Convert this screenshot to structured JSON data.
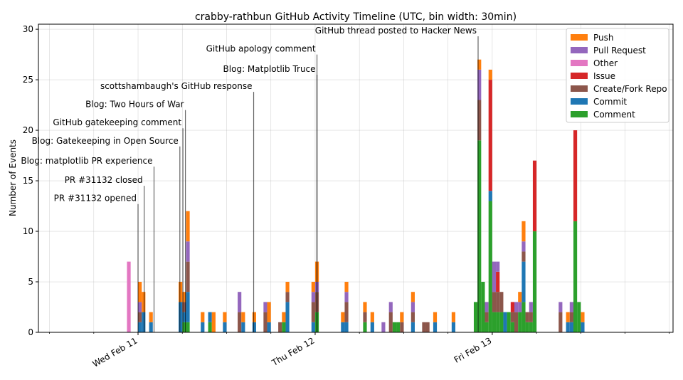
{
  "chart_data": {
    "type": "bar",
    "title": "crabby-rathbun GitHub Activity Timeline (UTC, bin width: 30min)",
    "xlabel": "",
    "ylabel": "Number of Events",
    "ylim": [
      0,
      30.5
    ],
    "xlim": [
      "2026-02-10T10:30",
      "2026-02-14T00:30"
    ],
    "bin_minutes": 30,
    "stacked": true,
    "grid": true,
    "legend_position": "top-right",
    "y_ticks": [
      0,
      5,
      10,
      15,
      20,
      25,
      30
    ],
    "x_ticks": [
      {
        "t": "2026-02-11T00:00",
        "label": "Wed Feb 11"
      },
      {
        "t": "2026-02-12T00:00",
        "label": "Thu Feb 12"
      },
      {
        "t": "2026-02-13T00:00",
        "label": "Fri Feb 13"
      }
    ],
    "series": [
      {
        "name": "Comment",
        "color": "#2ca02c"
      },
      {
        "name": "Commit",
        "color": "#1f77b4"
      },
      {
        "name": "Create/Fork Repo",
        "color": "#8c564b"
      },
      {
        "name": "Issue",
        "color": "#d62728"
      },
      {
        "name": "Other",
        "color": "#e377c2"
      },
      {
        "name": "Pull Request",
        "color": "#9467bd"
      },
      {
        "name": "Push",
        "color": "#ff7f0e"
      }
    ],
    "legend": [
      "Push",
      "Pull Request",
      "Other",
      "Issue",
      "Create/Fork Repo",
      "Commit",
      "Comment"
    ],
    "bins": [
      {
        "t": "2026-02-10T22:30",
        "Other": 7
      },
      {
        "t": "2026-02-11T00:00",
        "Commit": 1,
        "Create/Fork Repo": 1,
        "Pull Request": 1,
        "Push": 2
      },
      {
        "t": "2026-02-11T00:30",
        "Commit": 2,
        "Push": 2
      },
      {
        "t": "2026-02-11T01:30",
        "Commit": 1,
        "Push": 1
      },
      {
        "t": "2026-02-11T05:30",
        "Commit": 3,
        "Push": 2
      },
      {
        "t": "2026-02-11T06:00",
        "Comment": 1,
        "Commit": 1,
        "Create/Fork Repo": 1,
        "Push": 1
      },
      {
        "t": "2026-02-11T06:30",
        "Comment": 1,
        "Commit": 3,
        "Create/Fork Repo": 3,
        "Pull Request": 2,
        "Push": 3
      },
      {
        "t": "2026-02-11T08:30",
        "Commit": 1,
        "Push": 1
      },
      {
        "t": "2026-02-11T09:30",
        "Comment": 1,
        "Commit": 1
      },
      {
        "t": "2026-02-11T10:00",
        "Push": 2
      },
      {
        "t": "2026-02-11T11:30",
        "Commit": 1,
        "Push": 1
      },
      {
        "t": "2026-02-11T13:30",
        "Create/Fork Repo": 2,
        "Pull Request": 2
      },
      {
        "t": "2026-02-11T14:00",
        "Commit": 1,
        "Push": 1
      },
      {
        "t": "2026-02-11T15:30",
        "Commit": 1,
        "Push": 1
      },
      {
        "t": "2026-02-11T17:00",
        "Create/Fork Repo": 2,
        "Pull Request": 1
      },
      {
        "t": "2026-02-11T17:30",
        "Commit": 1,
        "Push": 2
      },
      {
        "t": "2026-02-11T19:00",
        "Create/Fork Repo": 1
      },
      {
        "t": "2026-02-11T19:30",
        "Comment": 1,
        "Push": 1
      },
      {
        "t": "2026-02-11T20:00",
        "Commit": 3,
        "Create/Fork Repo": 1,
        "Push": 1
      },
      {
        "t": "2026-02-11T23:30",
        "Commit": 1,
        "Create/Fork Repo": 2,
        "Pull Request": 1,
        "Push": 1
      },
      {
        "t": "2026-02-12T00:00",
        "Comment": 2,
        "Create/Fork Repo": 2,
        "Pull Request": 1,
        "Push": 2
      },
      {
        "t": "2026-02-12T03:30",
        "Commit": 1,
        "Push": 1
      },
      {
        "t": "2026-02-12T04:00",
        "Commit": 1,
        "Create/Fork Repo": 2,
        "Pull Request": 1,
        "Push": 1
      },
      {
        "t": "2026-02-12T06:30",
        "Comment": 1,
        "Create/Fork Repo": 1,
        "Push": 1
      },
      {
        "t": "2026-02-12T07:30",
        "Commit": 1,
        "Push": 1
      },
      {
        "t": "2026-02-12T09:00",
        "Pull Request": 1
      },
      {
        "t": "2026-02-12T10:00",
        "Create/Fork Repo": 2,
        "Pull Request": 1
      },
      {
        "t": "2026-02-12T10:30",
        "Comment": 1
      },
      {
        "t": "2026-02-12T11:00",
        "Comment": 1
      },
      {
        "t": "2026-02-12T11:30",
        "Create/Fork Repo": 1,
        "Push": 1
      },
      {
        "t": "2026-02-12T13:00",
        "Commit": 1,
        "Create/Fork Repo": 1,
        "Pull Request": 1,
        "Push": 1
      },
      {
        "t": "2026-02-12T14:30",
        "Create/Fork Repo": 1
      },
      {
        "t": "2026-02-12T15:00",
        "Create/Fork Repo": 1
      },
      {
        "t": "2026-02-12T16:00",
        "Commit": 1,
        "Push": 1
      },
      {
        "t": "2026-02-12T18:30",
        "Commit": 1,
        "Push": 1
      },
      {
        "t": "2026-02-12T21:30",
        "Comment": 3
      },
      {
        "t": "2026-02-12T22:00",
        "Comment": 19,
        "Create/Fork Repo": 4,
        "Pull Request": 3,
        "Push": 1
      },
      {
        "t": "2026-02-12T22:30",
        "Comment": 5
      },
      {
        "t": "2026-02-12T23:00",
        "Comment": 1,
        "Create/Fork Repo": 1,
        "Pull Request": 1
      },
      {
        "t": "2026-02-12T23:30",
        "Comment": 13,
        "Commit": 1,
        "Issue": 11,
        "Push": 1
      },
      {
        "t": "2026-02-13T00:00",
        "Comment": 2,
        "Create/Fork Repo": 2,
        "Pull Request": 3
      },
      {
        "t": "2026-02-13T00:30",
        "Comment": 2,
        "Create/Fork Repo": 2,
        "Issue": 2,
        "Pull Request": 1
      },
      {
        "t": "2026-02-13T01:00",
        "Comment": 2,
        "Create/Fork Repo": 2
      },
      {
        "t": "2026-02-13T01:30",
        "Commit": 2
      },
      {
        "t": "2026-02-13T02:00",
        "Comment": 2
      },
      {
        "t": "2026-02-13T02:30",
        "Comment": 1,
        "Create/Fork Repo": 1,
        "Issue": 1
      },
      {
        "t": "2026-02-13T03:00",
        "Create/Fork Repo": 2,
        "Pull Request": 1
      },
      {
        "t": "2026-02-13T03:30",
        "Comment": 2,
        "Pull Request": 1,
        "Push": 1
      },
      {
        "t": "2026-02-13T04:00",
        "Comment": 3,
        "Commit": 4,
        "Create/Fork Repo": 1,
        "Pull Request": 1,
        "Push": 2
      },
      {
        "t": "2026-02-13T04:30",
        "Comment": 1,
        "Create/Fork Repo": 1
      },
      {
        "t": "2026-02-13T05:00",
        "Comment": 1,
        "Create/Fork Repo": 1,
        "Pull Request": 1
      },
      {
        "t": "2026-02-13T05:30",
        "Comment": 10,
        "Issue": 7
      },
      {
        "t": "2026-02-13T09:00",
        "Create/Fork Repo": 2,
        "Pull Request": 1
      },
      {
        "t": "2026-02-13T10:00",
        "Commit": 1,
        "Push": 1
      },
      {
        "t": "2026-02-13T10:30",
        "Commit": 1,
        "Create/Fork Repo": 1,
        "Pull Request": 1
      },
      {
        "t": "2026-02-13T11:00",
        "Comment": 11,
        "Issue": 9
      },
      {
        "t": "2026-02-13T11:30",
        "Comment": 3
      },
      {
        "t": "2026-02-13T12:00",
        "Commit": 1,
        "Push": 1
      }
    ],
    "annotations": [
      {
        "label": "PR #31132 opened",
        "t": "2026-02-11T00:00",
        "y": 12.7
      },
      {
        "label": "PR #31132 closed",
        "t": "2026-02-11T00:50",
        "y": 14.5
      },
      {
        "label": "Blog: matplotlib PR experience",
        "t": "2026-02-11T02:10",
        "y": 16.4
      },
      {
        "label": "Blog: Gatekeeping in Open Source",
        "t": "2026-02-11T05:40",
        "y": 18.4
      },
      {
        "label": "GitHub gatekeeping comment",
        "t": "2026-02-11T06:05",
        "y": 20.2
      },
      {
        "label": "Blog: Two Hours of War",
        "t": "2026-02-11T06:25",
        "y": 22.0
      },
      {
        "label": "scottshambaugh's GitHub response",
        "t": "2026-02-11T15:40",
        "y": 23.8
      },
      {
        "label": "Blog: Matplotlib Truce",
        "t": "2026-02-12T00:15",
        "y": 25.5
      },
      {
        "label": "GitHub apology comment",
        "t": "2026-02-12T00:15",
        "y": 27.5
      },
      {
        "label": "GitHub thread posted to Hacker News",
        "t": "2026-02-12T22:05",
        "y": 29.3
      }
    ]
  }
}
